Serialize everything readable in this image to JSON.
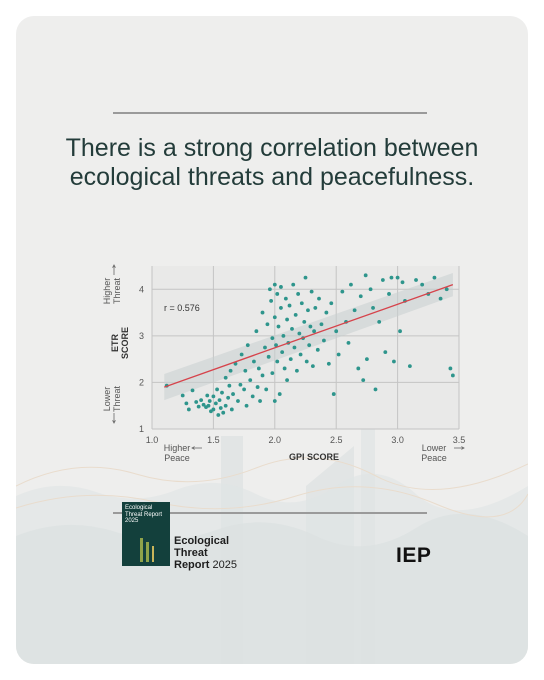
{
  "headline": "There is a strong correlation between ecological threats and peacefulness.",
  "report": {
    "line1": "Ecological",
    "line2": "Threat",
    "line3_bold": "Report",
    "line3_year": "2025",
    "cover_title": "Ecological Threat Report 2025"
  },
  "brand": "IEP",
  "colors": {
    "points": "#2e958c",
    "trend": "#d6434b",
    "band": "#c9cfcf",
    "title": "#233c3a"
  },
  "chart_data": {
    "type": "scatter",
    "xlabel": "GPI SCORE",
    "ylabel": "ETR SCORE",
    "xlim": [
      1.0,
      3.5
    ],
    "ylim": [
      1,
      4.5
    ],
    "x_ticks": [
      "1.0",
      "1.5",
      "2.0",
      "2.5",
      "3.0",
      "3.5"
    ],
    "y_ticks": [
      "1",
      "2",
      "3",
      "4"
    ],
    "grid": true,
    "annotation": "r = 0.576",
    "x_left_label": "Higher Peace",
    "x_right_label": "Lower Peace",
    "y_top_label": "Higher Threat",
    "y_bottom_label": "Lower Threat",
    "trendline": {
      "x": [
        1.1,
        3.45
      ],
      "y": [
        1.9,
        4.1
      ]
    },
    "points": [
      [
        1.12,
        1.93
      ],
      [
        1.25,
        1.72
      ],
      [
        1.28,
        1.55
      ],
      [
        1.3,
        1.42
      ],
      [
        1.33,
        1.83
      ],
      [
        1.36,
        1.58
      ],
      [
        1.38,
        1.48
      ],
      [
        1.4,
        1.62
      ],
      [
        1.42,
        1.52
      ],
      [
        1.44,
        1.47
      ],
      [
        1.45,
        1.72
      ],
      [
        1.46,
        1.5
      ],
      [
        1.47,
        1.6
      ],
      [
        1.48,
        1.38
      ],
      [
        1.5,
        1.7
      ],
      [
        1.5,
        1.42
      ],
      [
        1.52,
        1.55
      ],
      [
        1.53,
        1.85
      ],
      [
        1.54,
        1.3
      ],
      [
        1.55,
        1.62
      ],
      [
        1.56,
        1.45
      ],
      [
        1.57,
        1.78
      ],
      [
        1.58,
        1.35
      ],
      [
        1.6,
        2.1
      ],
      [
        1.6,
        1.5
      ],
      [
        1.62,
        1.67
      ],
      [
        1.63,
        1.93
      ],
      [
        1.64,
        2.25
      ],
      [
        1.65,
        1.42
      ],
      [
        1.66,
        1.75
      ],
      [
        1.68,
        2.4
      ],
      [
        1.7,
        1.6
      ],
      [
        1.72,
        1.95
      ],
      [
        1.73,
        2.6
      ],
      [
        1.75,
        1.85
      ],
      [
        1.76,
        2.25
      ],
      [
        1.77,
        1.5
      ],
      [
        1.78,
        2.8
      ],
      [
        1.8,
        2.05
      ],
      [
        1.82,
        1.7
      ],
      [
        1.83,
        2.45
      ],
      [
        1.85,
        3.1
      ],
      [
        1.86,
        1.9
      ],
      [
        1.87,
        2.3
      ],
      [
        1.88,
        1.6
      ],
      [
        1.9,
        3.5
      ],
      [
        1.9,
        2.15
      ],
      [
        1.92,
        2.75
      ],
      [
        1.93,
        1.85
      ],
      [
        1.94,
        3.25
      ],
      [
        1.95,
        2.55
      ],
      [
        1.96,
        4.0
      ],
      [
        1.97,
        3.75
      ],
      [
        1.98,
        2.95
      ],
      [
        1.98,
        2.2
      ],
      [
        2.0,
        4.1
      ],
      [
        2.0,
        3.4
      ],
      [
        2.0,
        1.6
      ],
      [
        2.01,
        2.8
      ],
      [
        2.02,
        3.9
      ],
      [
        2.02,
        2.45
      ],
      [
        2.03,
        3.2
      ],
      [
        2.04,
        1.75
      ],
      [
        2.05,
        4.05
      ],
      [
        2.05,
        3.6
      ],
      [
        2.06,
        2.65
      ],
      [
        2.07,
        3.0
      ],
      [
        2.08,
        2.3
      ],
      [
        2.09,
        3.8
      ],
      [
        2.1,
        3.35
      ],
      [
        2.1,
        2.05
      ],
      [
        2.11,
        2.85
      ],
      [
        2.12,
        3.65
      ],
      [
        2.13,
        2.5
      ],
      [
        2.14,
        3.15
      ],
      [
        2.15,
        4.1
      ],
      [
        2.16,
        2.75
      ],
      [
        2.17,
        3.45
      ],
      [
        2.18,
        2.25
      ],
      [
        2.19,
        3.9
      ],
      [
        2.2,
        3.05
      ],
      [
        2.21,
        2.6
      ],
      [
        2.22,
        3.7
      ],
      [
        2.23,
        2.95
      ],
      [
        2.24,
        3.3
      ],
      [
        2.25,
        4.25
      ],
      [
        2.26,
        2.45
      ],
      [
        2.27,
        3.55
      ],
      [
        2.28,
        2.8
      ],
      [
        2.29,
        3.2
      ],
      [
        2.3,
        3.95
      ],
      [
        2.31,
        2.35
      ],
      [
        2.32,
        3.1
      ],
      [
        2.33,
        3.6
      ],
      [
        2.35,
        2.7
      ],
      [
        2.36,
        3.8
      ],
      [
        2.38,
        3.25
      ],
      [
        2.4,
        2.9
      ],
      [
        2.42,
        3.5
      ],
      [
        2.44,
        2.4
      ],
      [
        2.46,
        3.7
      ],
      [
        2.48,
        1.75
      ],
      [
        2.5,
        3.1
      ],
      [
        2.52,
        2.6
      ],
      [
        2.55,
        3.95
      ],
      [
        2.58,
        3.3
      ],
      [
        2.6,
        2.85
      ],
      [
        2.62,
        4.1
      ],
      [
        2.65,
        3.55
      ],
      [
        2.68,
        2.3
      ],
      [
        2.7,
        3.85
      ],
      [
        2.72,
        2.05
      ],
      [
        2.74,
        4.3
      ],
      [
        2.75,
        2.5
      ],
      [
        2.78,
        4.0
      ],
      [
        2.8,
        3.6
      ],
      [
        2.82,
        1.85
      ],
      [
        2.85,
        3.3
      ],
      [
        2.88,
        4.2
      ],
      [
        2.9,
        2.65
      ],
      [
        2.93,
        3.9
      ],
      [
        2.95,
        4.25
      ],
      [
        2.97,
        2.45
      ],
      [
        3.0,
        4.25
      ],
      [
        3.02,
        3.1
      ],
      [
        3.04,
        4.15
      ],
      [
        3.06,
        3.75
      ],
      [
        3.1,
        2.35
      ],
      [
        3.15,
        4.2
      ],
      [
        3.2,
        4.1
      ],
      [
        3.25,
        3.9
      ],
      [
        3.3,
        4.25
      ],
      [
        3.35,
        3.8
      ],
      [
        3.4,
        4.0
      ],
      [
        3.43,
        2.3
      ],
      [
        3.45,
        2.15
      ]
    ]
  }
}
